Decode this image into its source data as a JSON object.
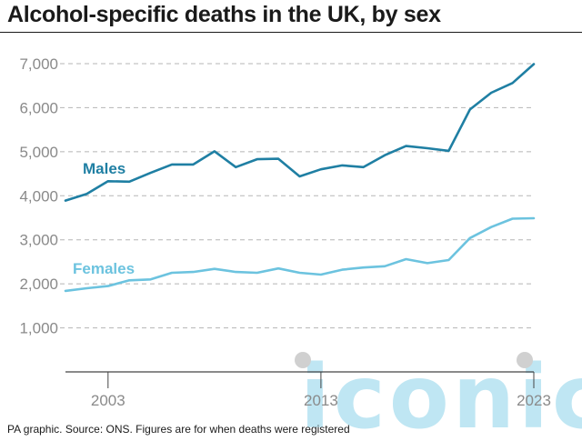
{
  "header": {
    "title": "Alcohol-specific deaths in the UK, by sex"
  },
  "footer": {
    "source": "PA graphic. Source: ONS. Figures are for when deaths were registered"
  },
  "watermark": {
    "text": "iconic"
  },
  "colors": {
    "males": "#1f7fa3",
    "females": "#6cc3df",
    "axis_text": "#8a8a8a",
    "grid": "#b5b5b5",
    "axis": "#444444",
    "watermark": "#bfe6f3",
    "watermark_dot": "#d0d0d0"
  },
  "chart_data": {
    "type": "line",
    "title": "Alcohol-specific deaths in the UK, by sex",
    "x": [
      2001,
      2002,
      2003,
      2004,
      2005,
      2006,
      2007,
      2008,
      2009,
      2010,
      2011,
      2012,
      2013,
      2014,
      2015,
      2016,
      2017,
      2018,
      2019,
      2020,
      2021,
      2022,
      2023
    ],
    "series": [
      {
        "name": "Males",
        "color": "#1f7fa3",
        "values": [
          3890,
          4040,
          4330,
          4320,
          4520,
          4710,
          4710,
          5010,
          4650,
          4830,
          4840,
          4440,
          4600,
          4690,
          4650,
          4920,
          5130,
          5080,
          5020,
          5960,
          6340,
          6560,
          6990
        ]
      },
      {
        "name": "Females",
        "color": "#6cc3df",
        "values": [
          1840,
          1900,
          1950,
          2080,
          2100,
          2250,
          2270,
          2340,
          2270,
          2250,
          2350,
          2250,
          2210,
          2320,
          2370,
          2400,
          2560,
          2470,
          2540,
          3040,
          3290,
          3480,
          3490
        ]
      }
    ],
    "x_ticks": [
      2003,
      2013,
      2023
    ],
    "x_tick_labels": [
      "2003",
      "2013",
      "2023"
    ],
    "y_ticks": [
      1000,
      2000,
      3000,
      4000,
      5000,
      6000,
      7000
    ],
    "y_tick_labels": [
      "1,000",
      "2,000",
      "3,000",
      "4,000",
      "5,000",
      "6,000",
      "7,000"
    ],
    "xlim": [
      2001,
      2023
    ],
    "ylim": [
      0,
      7000
    ],
    "xlabel": "",
    "ylabel": "",
    "grid": "horizontal-dashed",
    "legend": "inline-labels"
  }
}
